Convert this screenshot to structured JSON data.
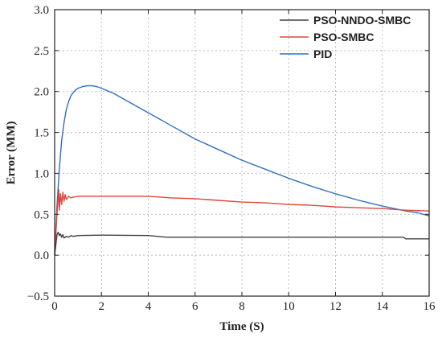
{
  "chart_data": {
    "type": "line",
    "xlabel": "Time (S)",
    "ylabel": "Error (MM)",
    "xlim": [
      0,
      16
    ],
    "ylim": [
      -0.5,
      3.0
    ],
    "xticks": [
      "0",
      "2",
      "4",
      "6",
      "8",
      "10",
      "12",
      "14",
      "16"
    ],
    "yticks": [
      "3.0",
      "2.5",
      "2.0",
      "1.5",
      "1.0",
      "0.5",
      "0.0",
      "−0.5"
    ],
    "grid": true,
    "legend_position": "top-right",
    "series": [
      {
        "name": "PSO-NNDO-SMBC",
        "color": "#404040",
        "x": [
          0,
          0.1,
          0.15,
          0.2,
          0.25,
          0.3,
          0.35,
          0.4,
          0.5,
          0.6,
          0.7,
          0.8,
          1.0,
          2.0,
          4.0,
          4.8,
          6.0,
          10.0,
          14.9,
          15.0,
          16.0
        ],
        "y": [
          0.0,
          0.25,
          0.28,
          0.24,
          0.26,
          0.22,
          0.25,
          0.21,
          0.23,
          0.22,
          0.24,
          0.23,
          0.24,
          0.245,
          0.24,
          0.22,
          0.22,
          0.22,
          0.22,
          0.2,
          0.2
        ]
      },
      {
        "name": "PSO-SMBC",
        "color": "#e0463a",
        "x": [
          0,
          0.1,
          0.18,
          0.2,
          0.25,
          0.3,
          0.35,
          0.4,
          0.45,
          0.5,
          0.6,
          0.7,
          0.8,
          1.0,
          2.0,
          4.0,
          5.0,
          6.0,
          7.0,
          8.0,
          9.0,
          10.0,
          11.0,
          12.0,
          13.0,
          14.0,
          15.0,
          16.0
        ],
        "y": [
          0.0,
          0.5,
          0.8,
          0.55,
          0.75,
          0.62,
          0.77,
          0.66,
          0.74,
          0.68,
          0.72,
          0.7,
          0.71,
          0.72,
          0.72,
          0.72,
          0.7,
          0.69,
          0.67,
          0.65,
          0.64,
          0.62,
          0.61,
          0.59,
          0.58,
          0.57,
          0.55,
          0.54
        ]
      },
      {
        "name": "PID",
        "color": "#2f6fc4",
        "x": [
          0,
          0.1,
          0.2,
          0.3,
          0.4,
          0.5,
          0.6,
          0.7,
          0.8,
          0.9,
          1.0,
          1.2,
          1.4,
          1.6,
          1.8,
          2.0,
          2.5,
          3.0,
          3.5,
          4.0,
          5.0,
          6.0,
          7.0,
          8.0,
          9.0,
          10.0,
          11.0,
          12.0,
          13.0,
          14.0,
          15.0,
          15.5,
          16.0
        ],
        "y": [
          0.0,
          0.6,
          1.05,
          1.4,
          1.62,
          1.78,
          1.88,
          1.95,
          1.99,
          2.02,
          2.04,
          2.06,
          2.07,
          2.07,
          2.06,
          2.04,
          1.98,
          1.9,
          1.82,
          1.74,
          1.58,
          1.42,
          1.29,
          1.16,
          1.05,
          0.94,
          0.84,
          0.75,
          0.67,
          0.6,
          0.54,
          0.52,
          0.48
        ]
      }
    ]
  }
}
